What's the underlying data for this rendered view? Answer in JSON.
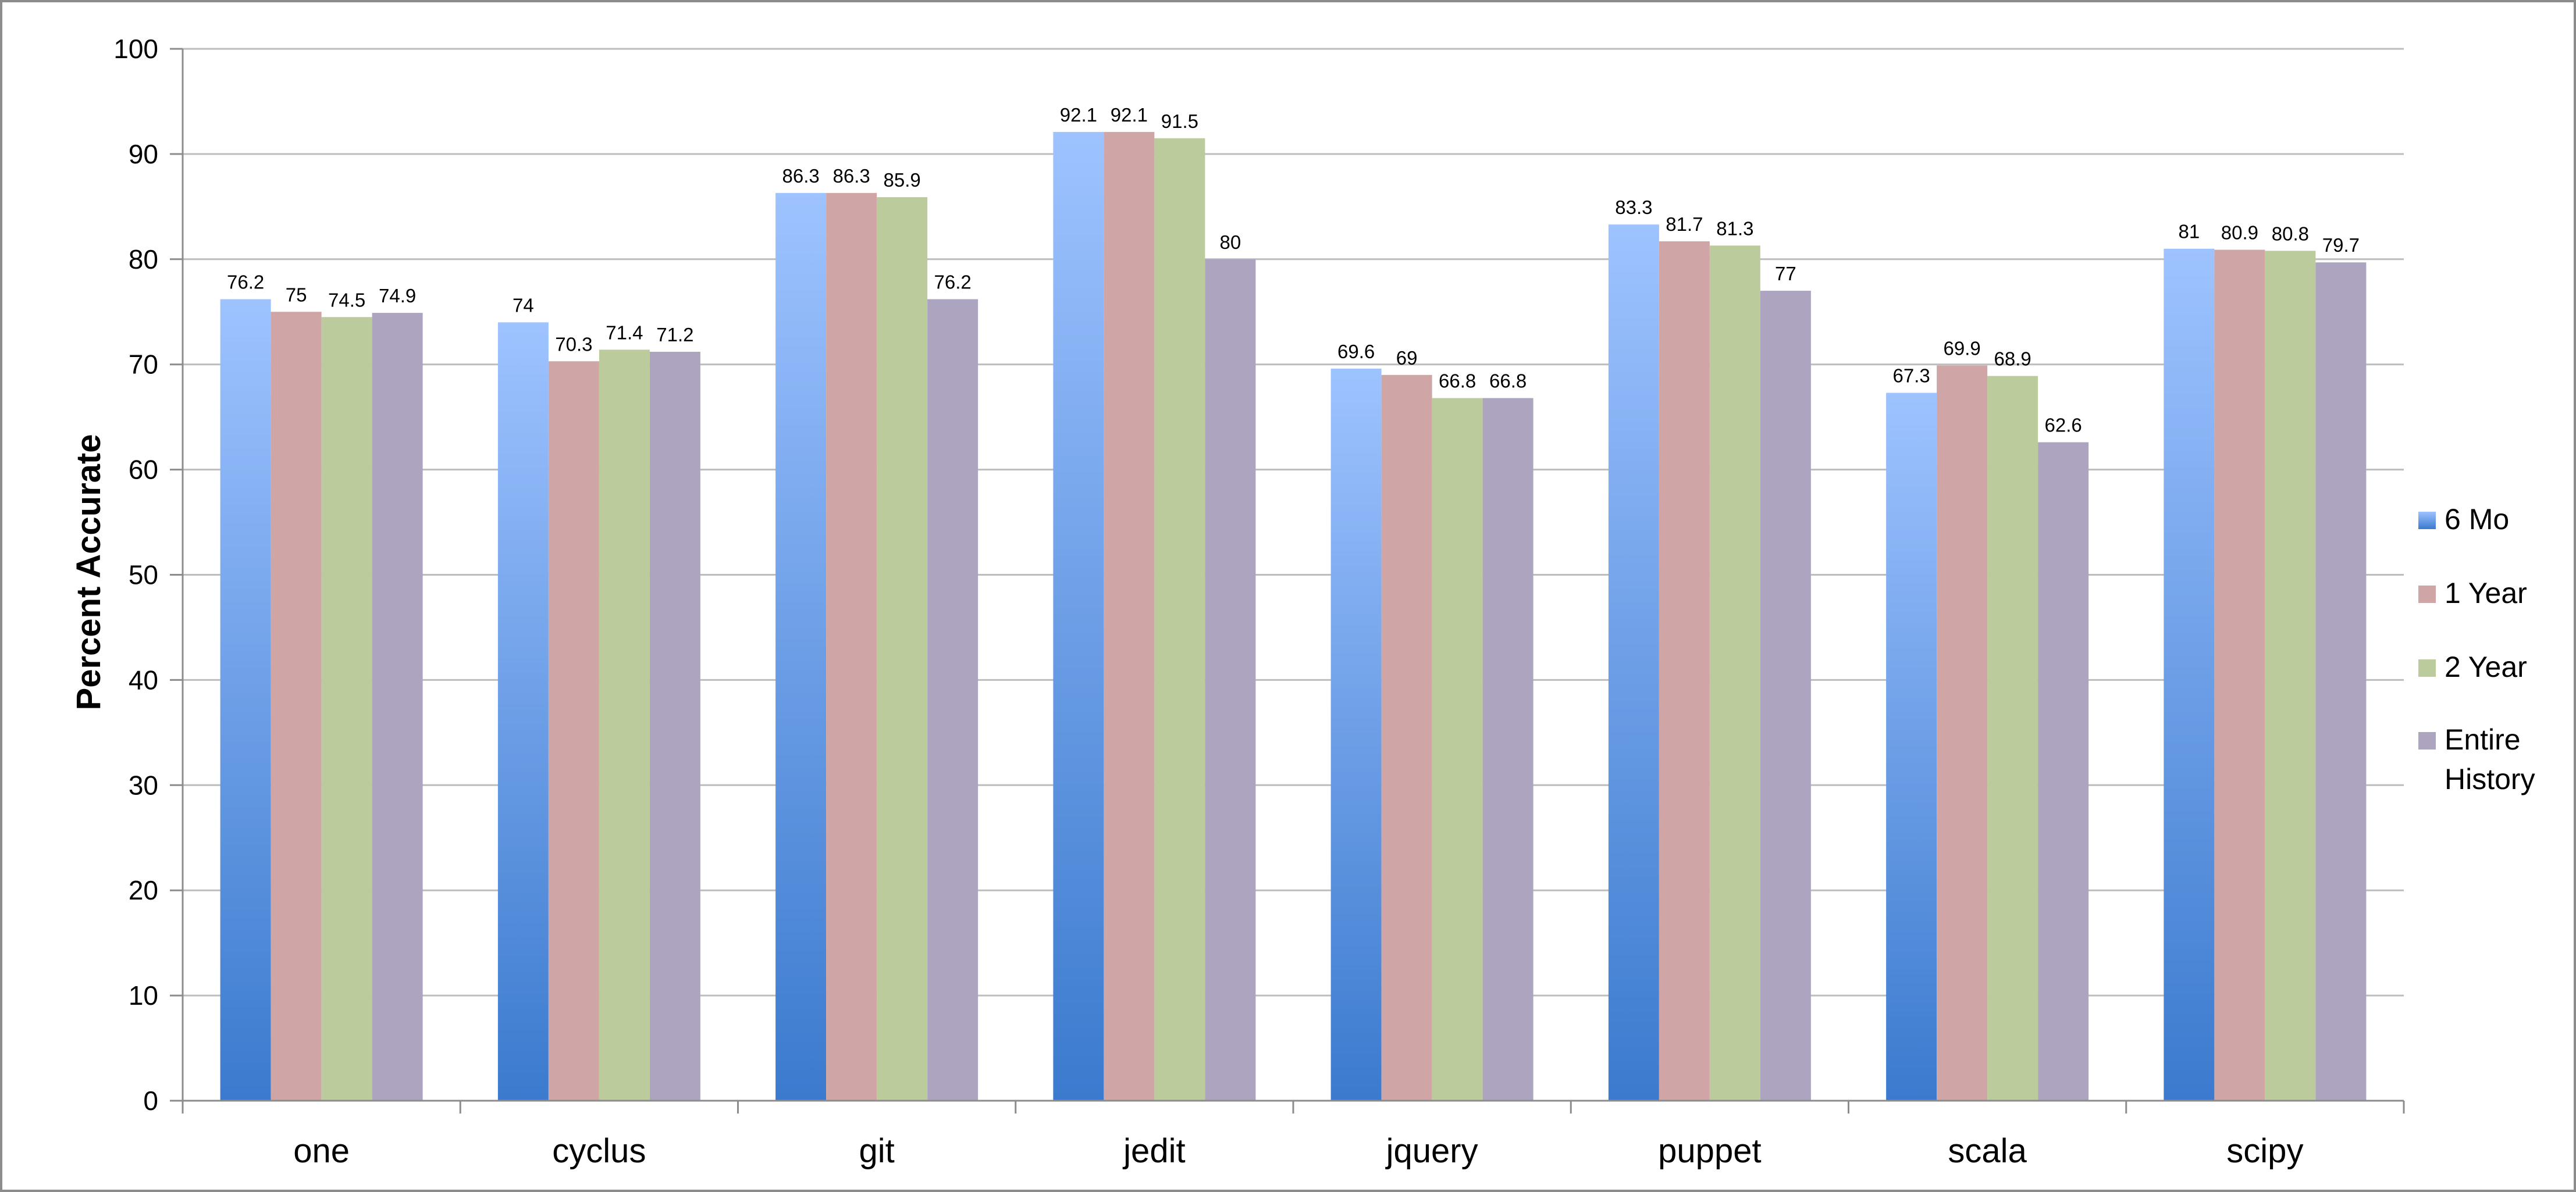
{
  "chart_data": {
    "type": "bar",
    "title": "",
    "xlabel": "",
    "ylabel": "Percent Accurate",
    "ylim": [
      0,
      100
    ],
    "yticks": [
      0,
      10,
      20,
      30,
      40,
      50,
      60,
      70,
      80,
      90,
      100
    ],
    "grid": true,
    "legend_position": "right",
    "categories": [
      "one",
      "cyclus",
      "git",
      "jedit",
      "jquery",
      "puppet",
      "scala",
      "scipy"
    ],
    "series": [
      {
        "name": "6 Mo",
        "color": "#4a86d4",
        "values": [
          76.2,
          74,
          86.3,
          92.1,
          69.6,
          83.3,
          67.3,
          81
        ]
      },
      {
        "name": "1 Year",
        "color": "#cfa5a5",
        "values": [
          75,
          70.3,
          86.3,
          92.1,
          69,
          81.7,
          69.9,
          80.9
        ]
      },
      {
        "name": "2 Year",
        "color": "#bccb9c",
        "values": [
          74.5,
          71.4,
          85.9,
          91.5,
          66.8,
          81.3,
          68.9,
          80.8
        ]
      },
      {
        "name": "Entire History",
        "color": "#ada4c0",
        "values": [
          74.9,
          71.2,
          76.2,
          80,
          66.8,
          77,
          62.6,
          79.7
        ]
      }
    ],
    "data_labels": [
      [
        "76.2",
        "74",
        "86.3",
        "92.1",
        "69.6",
        "83.3",
        "67.3",
        "81"
      ],
      [
        "75",
        "70.3",
        "86.3",
        "92.1",
        "69",
        "81.7",
        "69.9",
        "80.9"
      ],
      [
        "74.5",
        "71.4",
        "85.9",
        "91.5",
        "66.8",
        "81.3",
        "68.9",
        "80.8"
      ],
      [
        "74.9",
        "71.2",
        "76.2",
        "80",
        "66.8",
        "77",
        "62.6",
        "79.7"
      ]
    ],
    "legend": [
      {
        "lines": [
          "6 Mo"
        ]
      },
      {
        "lines": [
          "1 Year"
        ]
      },
      {
        "lines": [
          "2 Year"
        ]
      },
      {
        "lines": [
          "Entire",
          "History"
        ]
      }
    ]
  }
}
